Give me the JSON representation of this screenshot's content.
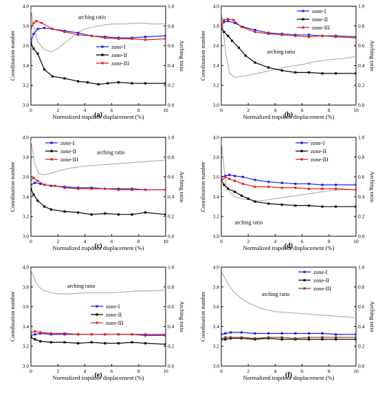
{
  "chart_data": [
    {
      "panel_label": "(a)",
      "type": "line",
      "xlabel": "Normalized trapdoor displacement (%)",
      "ylabel": "Coordination number",
      "y2label": "Arching ratio",
      "xlim": [
        0,
        10
      ],
      "ylim": [
        3.0,
        4.0
      ],
      "y2lim": [
        0.0,
        1.0
      ],
      "xticks": [
        "0",
        "2",
        "4",
        "6",
        "8",
        "10"
      ],
      "yticks": [
        "3.0",
        "3.2",
        "3.4",
        "3.6",
        "3.8",
        "4.0"
      ],
      "y2ticks": [
        "0.0",
        "0.2",
        "0.4",
        "0.6",
        "0.8",
        "1.0"
      ],
      "legend": [
        "zone-I",
        "zone-II",
        "zone-III"
      ],
      "annotation": {
        "text": "arching ratio",
        "pos": [
          3.5,
          3.87
        ]
      },
      "series": [
        {
          "name": "zone-I",
          "color": "#1f1fe0",
          "x": [
            0,
            0.2,
            0.5,
            1,
            1.6,
            2.5,
            3.5,
            4.5,
            5.5,
            6.5,
            7.5,
            8.5,
            10
          ],
          "y": [
            3.64,
            3.72,
            3.77,
            3.78,
            3.77,
            3.75,
            3.73,
            3.7,
            3.69,
            3.68,
            3.68,
            3.69,
            3.7
          ]
        },
        {
          "name": "zone-II",
          "color": "#000000",
          "x": [
            0,
            0.2,
            0.5,
            1,
            1.6,
            2.5,
            3.5,
            4.2,
            5,
            5.7,
            6.5,
            7.5,
            8.5,
            10
          ],
          "y": [
            3.62,
            3.57,
            3.52,
            3.36,
            3.29,
            3.27,
            3.24,
            3.23,
            3.21,
            3.22,
            3.23,
            3.22,
            3.22,
            3.22
          ]
        },
        {
          "name": "zone-III",
          "color": "#e01f1f",
          "x": [
            0,
            0.2,
            0.4,
            0.8,
            1.6,
            2.5,
            3.5,
            4.5,
            5.5,
            6.5,
            7.5,
            8.5,
            10
          ],
          "y": [
            3.78,
            3.83,
            3.85,
            3.83,
            3.77,
            3.74,
            3.71,
            3.7,
            3.68,
            3.67,
            3.67,
            3.66,
            3.67
          ]
        },
        {
          "name": "arching ratio",
          "axis": "right",
          "color": "#b0b0b0",
          "x": [
            0,
            0.2,
            0.5,
            1,
            1.5,
            2,
            2.5,
            3,
            3.5,
            4,
            5,
            6,
            7,
            8,
            9,
            10
          ],
          "y": [
            0.97,
            0.8,
            0.64,
            0.56,
            0.54,
            0.57,
            0.63,
            0.68,
            0.73,
            0.77,
            0.8,
            0.82,
            0.82,
            0.83,
            0.82,
            0.82
          ]
        }
      ]
    },
    {
      "panel_label": "(b)",
      "type": "line",
      "xlabel": "Normalized trapdoor displacement (%)",
      "ylabel": "Coordination number",
      "y2label": "Arching ratio",
      "xlim": [
        0,
        10
      ],
      "ylim": [
        3.0,
        4.0
      ],
      "y2lim": [
        0.0,
        1.0
      ],
      "xticks": [
        "0",
        "2",
        "4",
        "6",
        "8",
        "10"
      ],
      "yticks": [
        "3.0",
        "3.2",
        "3.4",
        "3.6",
        "3.8",
        "4.0"
      ],
      "y2ticks": [
        "0.0",
        "0.2",
        "0.4",
        "0.6",
        "0.8",
        "1.0"
      ],
      "legend": [
        "zone-I",
        "zone-II",
        "zone-III"
      ],
      "annotation": {
        "text": "arching ratio",
        "pos": [
          3.4,
          3.52
        ]
      },
      "series": [
        {
          "name": "zone-I",
          "color": "#1f1fe0",
          "x": [
            0,
            0.2,
            0.5,
            1,
            1.6,
            2.5,
            3.5,
            4.5,
            5.5,
            6.5,
            7.5,
            8.5,
            10
          ],
          "y": [
            3.8,
            3.84,
            3.85,
            3.83,
            3.79,
            3.76,
            3.73,
            3.72,
            3.71,
            3.71,
            3.7,
            3.7,
            3.69
          ]
        },
        {
          "name": "zone-II",
          "color": "#000000",
          "x": [
            0,
            0.2,
            0.5,
            0.8,
            1.3,
            1.8,
            2.5,
            3.5,
            4.5,
            5.5,
            6.5,
            7.5,
            8.5,
            10
          ],
          "y": [
            3.78,
            3.74,
            3.7,
            3.65,
            3.58,
            3.5,
            3.43,
            3.38,
            3.35,
            3.33,
            3.33,
            3.32,
            3.32,
            3.32
          ]
        },
        {
          "name": "zone-III",
          "color": "#e01f1f",
          "x": [
            0,
            0.2,
            0.5,
            0.9,
            1.5,
            2.5,
            3.5,
            4.5,
            5.5,
            6.5,
            7.5,
            8.5,
            10
          ],
          "y": [
            3.79,
            3.86,
            3.87,
            3.86,
            3.79,
            3.74,
            3.72,
            3.71,
            3.7,
            3.69,
            3.7,
            3.69,
            3.68
          ]
        },
        {
          "name": "arching ratio",
          "axis": "right",
          "color": "#b0b0b0",
          "x": [
            0,
            0.3,
            0.6,
            1,
            1.5,
            2,
            3,
            4,
            5,
            6,
            7,
            8,
            9,
            10
          ],
          "y": [
            0.96,
            0.55,
            0.32,
            0.28,
            0.29,
            0.3,
            0.33,
            0.36,
            0.39,
            0.41,
            0.44,
            0.46,
            0.47,
            0.49
          ]
        }
      ]
    },
    {
      "panel_label": "(c)",
      "type": "line",
      "xlabel": "Normalized trapdoor displacement (%)",
      "ylabel": "Coordination number",
      "y2label": "Arching ratio",
      "xlim": [
        0,
        10
      ],
      "ylim": [
        3.0,
        4.0
      ],
      "y2lim": [
        0.0,
        1.0
      ],
      "xticks": [
        "0",
        "2",
        "4",
        "6",
        "8",
        "10"
      ],
      "yticks": [
        "3.0",
        "3.2",
        "3.4",
        "3.6",
        "3.8",
        "4.0"
      ],
      "y2ticks": [
        "0.0",
        "0.2",
        "0.4",
        "0.6",
        "0.8",
        "1.0"
      ],
      "legend": [
        "zone-I",
        "zone-II",
        "zone-III"
      ],
      "annotation": {
        "text": "arching ratio",
        "pos": [
          4.9,
          3.83
        ]
      },
      "series": [
        {
          "name": "zone-I",
          "color": "#1f1fe0",
          "x": [
            0,
            0.3,
            0.7,
            1.5,
            2.5,
            3.5,
            4.5,
            5.5,
            6.5,
            7.5,
            8.5,
            10
          ],
          "y": [
            3.52,
            3.54,
            3.53,
            3.51,
            3.5,
            3.49,
            3.49,
            3.48,
            3.48,
            3.48,
            3.47,
            3.47
          ]
        },
        {
          "name": "zone-II",
          "color": "#000000",
          "x": [
            0,
            0.2,
            0.5,
            1,
            1.5,
            2.5,
            3.5,
            4.5,
            5.5,
            6.5,
            7.5,
            8.5,
            10
          ],
          "y": [
            3.48,
            3.42,
            3.36,
            3.3,
            3.27,
            3.25,
            3.24,
            3.22,
            3.23,
            3.22,
            3.22,
            3.24,
            3.22
          ]
        },
        {
          "name": "zone-III",
          "color": "#e01f1f",
          "x": [
            0,
            0.2,
            0.5,
            1,
            1.8,
            2.5,
            3.5,
            4.5,
            5.5,
            6.5,
            7.5,
            8.5,
            10
          ],
          "y": [
            3.57,
            3.59,
            3.56,
            3.52,
            3.51,
            3.49,
            3.48,
            3.48,
            3.48,
            3.47,
            3.47,
            3.47,
            3.47
          ]
        },
        {
          "name": "arching ratio",
          "axis": "right",
          "color": "#b0b0b0",
          "x": [
            0,
            0.3,
            0.6,
            1,
            1.5,
            2,
            3,
            4,
            5,
            6,
            7,
            8,
            9,
            10
          ],
          "y": [
            0.97,
            0.72,
            0.63,
            0.62,
            0.64,
            0.66,
            0.69,
            0.71,
            0.72,
            0.73,
            0.74,
            0.75,
            0.76,
            0.77
          ]
        }
      ]
    },
    {
      "panel_label": "(d)",
      "type": "line",
      "xlabel": "Normalized trapdoor displacement (%)",
      "ylabel": "Coordination number",
      "y2label": "Arching ratio",
      "xlim": [
        0,
        10
      ],
      "ylim": [
        3.0,
        4.0
      ],
      "y2lim": [
        0.0,
        1.0
      ],
      "xticks": [
        "0",
        "2",
        "4",
        "6",
        "8",
        "10"
      ],
      "yticks": [
        "3.0",
        "3.2",
        "3.4",
        "3.6",
        "3.8",
        "4.0"
      ],
      "y2ticks": [
        "0.0",
        "0.2",
        "0.4",
        "0.6",
        "0.8",
        "1.0"
      ],
      "legend": [
        "zone-I",
        "zone-II",
        "zone-III"
      ],
      "annotation": {
        "text": "arching ratio",
        "pos": [
          1.0,
          3.12
        ]
      },
      "series": [
        {
          "name": "zone-I",
          "color": "#1f1fe0",
          "x": [
            0,
            0.3,
            0.6,
            1,
            1.6,
            2.5,
            3.5,
            4.5,
            5.5,
            6.5,
            7.5,
            8.5,
            10
          ],
          "y": [
            3.6,
            3.61,
            3.62,
            3.61,
            3.6,
            3.57,
            3.55,
            3.54,
            3.53,
            3.53,
            3.52,
            3.52,
            3.52
          ]
        },
        {
          "name": "zone-II",
          "color": "#000000",
          "x": [
            0,
            0.2,
            0.5,
            1,
            1.5,
            2,
            2.5,
            3.5,
            4.5,
            5.5,
            6.5,
            7.5,
            8.5,
            10
          ],
          "y": [
            3.57,
            3.52,
            3.48,
            3.45,
            3.41,
            3.38,
            3.35,
            3.33,
            3.32,
            3.31,
            3.31,
            3.3,
            3.3,
            3.3
          ]
        },
        {
          "name": "zone-III",
          "color": "#e01f1f",
          "x": [
            0,
            0.3,
            0.6,
            1,
            1.6,
            2.5,
            3.5,
            4.5,
            5.5,
            6.5,
            7.5,
            8.5,
            10
          ],
          "y": [
            3.56,
            3.6,
            3.58,
            3.56,
            3.53,
            3.5,
            3.5,
            3.49,
            3.49,
            3.48,
            3.48,
            3.48,
            3.47
          ]
        },
        {
          "name": "arching ratio",
          "axis": "right",
          "color": "#b0b0b0",
          "x": [
            0,
            0.3,
            0.6,
            1,
            1.5,
            2,
            2.5,
            3,
            4,
            5,
            6,
            7,
            8,
            9,
            10
          ],
          "y": [
            0.97,
            0.55,
            0.45,
            0.4,
            0.38,
            0.37,
            0.36,
            0.36,
            0.38,
            0.4,
            0.42,
            0.44,
            0.46,
            0.47,
            0.47
          ]
        }
      ]
    },
    {
      "panel_label": "(e)",
      "type": "line",
      "xlabel": "Normalized trapdoor displacement (%)",
      "ylabel": "Coordination number",
      "y2label": "Arching ratio",
      "xlim": [
        0,
        10
      ],
      "ylim": [
        3.0,
        4.0
      ],
      "y2lim": [
        0.0,
        1.0
      ],
      "xticks": [
        "0",
        "2",
        "4",
        "6",
        "8",
        "10"
      ],
      "yticks": [
        "3.0",
        "3.2",
        "3.4",
        "3.6",
        "3.8",
        "4.0"
      ],
      "y2ticks": [
        "0.0",
        "0.2",
        "0.4",
        "0.6",
        "0.8",
        "1.0"
      ],
      "legend": [
        "zone-I",
        "zone-II",
        "zone-III"
      ],
      "annotation": {
        "text": "arching ratio",
        "pos": [
          2.7,
          3.79
        ]
      },
      "series": [
        {
          "name": "zone-I",
          "color": "#1f1fe0",
          "x": [
            0,
            0.3,
            0.7,
            1.5,
            2.5,
            3.5,
            4.5,
            5.5,
            6.5,
            7.5,
            8.5,
            10
          ],
          "y": [
            3.31,
            3.32,
            3.33,
            3.32,
            3.32,
            3.32,
            3.32,
            3.32,
            3.32,
            3.32,
            3.31,
            3.31
          ]
        },
        {
          "name": "zone-II",
          "color": "#000000",
          "x": [
            0,
            0.3,
            0.7,
            1.5,
            2.5,
            3.5,
            4.5,
            5.5,
            6.5,
            7.5,
            8.5,
            10
          ],
          "y": [
            3.29,
            3.27,
            3.25,
            3.24,
            3.24,
            3.23,
            3.24,
            3.23,
            3.23,
            3.24,
            3.23,
            3.22
          ]
        },
        {
          "name": "zone-III",
          "color": "#e01f1f",
          "x": [
            0,
            0.3,
            0.7,
            1.5,
            2.5,
            3.5,
            4.5,
            5.5,
            6.5,
            7.5,
            8.5,
            10
          ],
          "y": [
            3.34,
            3.35,
            3.34,
            3.33,
            3.33,
            3.32,
            3.32,
            3.32,
            3.32,
            3.32,
            3.32,
            3.32
          ]
        },
        {
          "name": "arching ratio",
          "axis": "right",
          "color": "#b0b0b0",
          "x": [
            0,
            0.3,
            0.6,
            1,
            1.5,
            2,
            3,
            4,
            5,
            6,
            7,
            8,
            9,
            10
          ],
          "y": [
            0.97,
            0.87,
            0.8,
            0.76,
            0.74,
            0.73,
            0.73,
            0.74,
            0.74,
            0.74,
            0.75,
            0.76,
            0.76,
            0.77
          ]
        }
      ]
    },
    {
      "panel_label": "(f)",
      "type": "line",
      "xlabel": "Normalized trapdoor displacement (%)",
      "ylabel": "Coordination number",
      "y2label": "Arching ratio",
      "xlim": [
        0,
        10
      ],
      "ylim": [
        3.0,
        4.0
      ],
      "y2lim": [
        0.0,
        1.0
      ],
      "xticks": [
        "0",
        "2",
        "4",
        "6",
        "8",
        "10"
      ],
      "yticks": [
        "3.0",
        "3.2",
        "3.4",
        "3.6",
        "3.8",
        "4.0"
      ],
      "y2ticks": [
        "0.0",
        "0.2",
        "0.4",
        "0.6",
        "0.8",
        "1.0"
      ],
      "legend": [
        "zone-I",
        "zone-II",
        "zone-III"
      ],
      "annotation": {
        "text": "arching ratio",
        "pos": [
          3.0,
          3.71
        ]
      },
      "series": [
        {
          "name": "zone-I",
          "color": "#1f1fe0",
          "x": [
            0,
            0.3,
            0.7,
            1.5,
            2.5,
            3.5,
            4.5,
            5.5,
            6.5,
            7.5,
            8.5,
            10
          ],
          "y": [
            3.32,
            3.33,
            3.34,
            3.34,
            3.33,
            3.33,
            3.33,
            3.33,
            3.33,
            3.33,
            3.32,
            3.32
          ]
        },
        {
          "name": "zone-II",
          "color": "#000000",
          "x": [
            0,
            0.3,
            0.7,
            1.5,
            2.5,
            3.5,
            4.5,
            5.5,
            6.5,
            7.5,
            8.5,
            10
          ],
          "y": [
            3.27,
            3.27,
            3.28,
            3.28,
            3.27,
            3.28,
            3.27,
            3.27,
            3.27,
            3.27,
            3.27,
            3.27
          ]
        },
        {
          "name": "zone-III",
          "color": "#8b3a1a",
          "x": [
            0,
            0.3,
            0.7,
            1.5,
            2.5,
            3.5,
            4.5,
            5.5,
            6.5,
            7.5,
            8.5,
            10
          ],
          "y": [
            3.28,
            3.29,
            3.29,
            3.29,
            3.28,
            3.29,
            3.29,
            3.28,
            3.29,
            3.29,
            3.29,
            3.29
          ]
        },
        {
          "name": "arching ratio",
          "axis": "right",
          "color": "#b0b0b0",
          "x": [
            0,
            0.3,
            0.6,
            1,
            1.5,
            2,
            2.5,
            3,
            4,
            5,
            6,
            7,
            8,
            9,
            10
          ],
          "y": [
            0.96,
            0.88,
            0.81,
            0.74,
            0.68,
            0.64,
            0.61,
            0.58,
            0.55,
            0.54,
            0.53,
            0.52,
            0.51,
            0.5,
            0.49
          ]
        }
      ]
    }
  ]
}
